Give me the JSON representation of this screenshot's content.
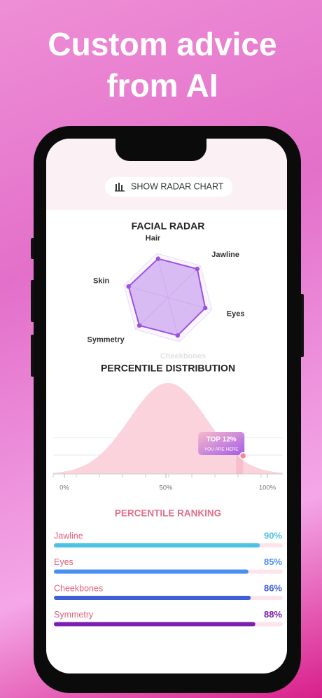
{
  "header": {
    "title_lines": [
      "Custom advice",
      "from AI"
    ]
  },
  "button": {
    "label": "SHOW RADAR CHART"
  },
  "radar": {
    "title": "FACIAL RADAR",
    "axes": [
      "Hair",
      "Jawline",
      "Eyes",
      "Cheekbones",
      "Symmetry",
      "Skin"
    ],
    "values": [
      88,
      90,
      85,
      86,
      88,
      90
    ],
    "max": 100,
    "color": "#9b51e0"
  },
  "distribution": {
    "title": "PERCENTILE DISTRIBUTION",
    "badge": "TOP 12%",
    "badge_sub": "YOU ARE HERE",
    "marker": 88,
    "xlim": [
      0,
      100
    ],
    "xticks": [
      {
        "value": 0,
        "label": "0%"
      },
      {
        "value": 50,
        "label": "50%"
      },
      {
        "value": 100,
        "label": "100%"
      }
    ]
  },
  "ranking": {
    "title": "PERCENTILE RANKING",
    "items": [
      {
        "name": "Jawline",
        "value": 90,
        "label": "90%",
        "color": "#4cc3e6"
      },
      {
        "name": "Eyes",
        "value": 85,
        "label": "85%",
        "color": "#4a8ff0"
      },
      {
        "name": "Cheekbones",
        "value": 86,
        "label": "86%",
        "color": "#3f5fd9"
      },
      {
        "name": "Symmetry",
        "value": 88,
        "label": "88%",
        "color": "#7a1fb0"
      }
    ]
  }
}
